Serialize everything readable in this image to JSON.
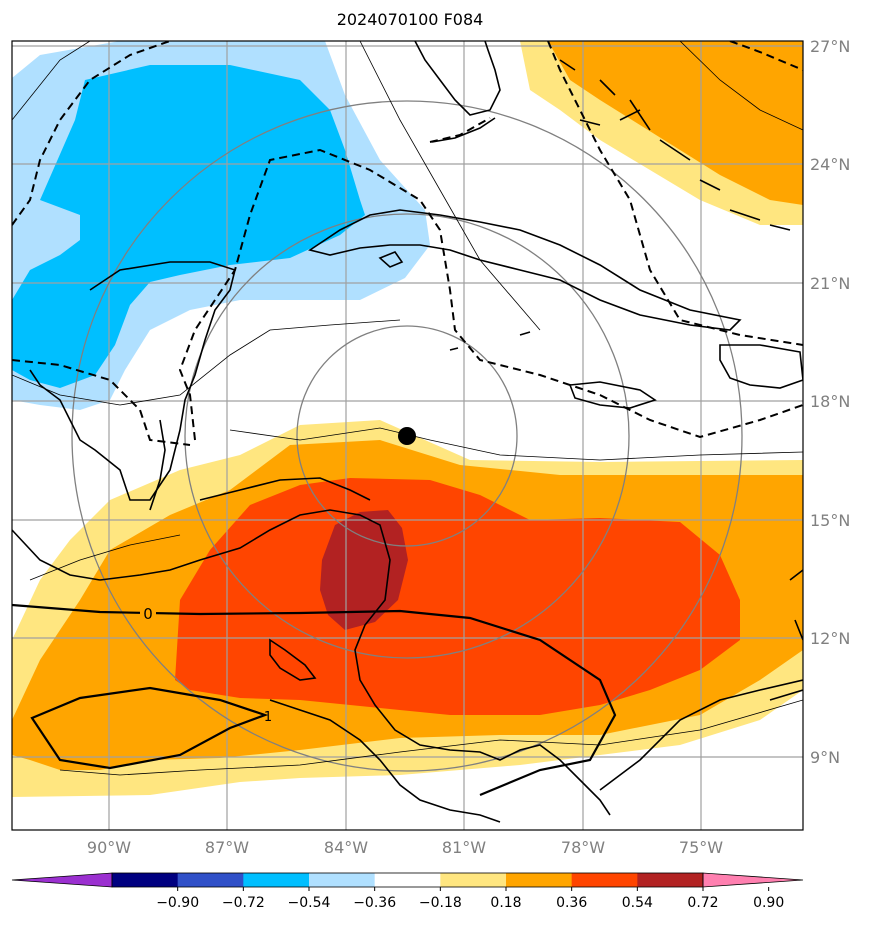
{
  "title": "2024070100 F084",
  "lat_labels": [
    "27°N",
    "24°N",
    "21°N",
    "18°N",
    "15°N",
    "12°N",
    "9°N"
  ],
  "lon_labels": [
    "90°W",
    "87°W",
    "84°W",
    "81°W",
    "78°W",
    "75°W"
  ],
  "contour_labels": [
    "0",
    "1"
  ],
  "marker": {
    "lon": -82.0,
    "lat": 17.1,
    "label": "storm-center-marker"
  },
  "colorbar": {
    "tick_labels": [
      "−0.90",
      "−0.72",
      "−0.54",
      "−0.36",
      "−0.18",
      "0.18",
      "0.36",
      "0.54",
      "0.72",
      "0.90"
    ],
    "colors": [
      "#9b30d0",
      "#000080",
      "#3050c8",
      "#00bfff",
      "#b0e0ff",
      "#ffffff",
      "#ffe680",
      "#ffa500",
      "#ff4500",
      "#b22222",
      "#ff80b0"
    ]
  },
  "colors": {
    "light_blue": "#b0e0ff",
    "blue": "#00bfff",
    "yellow": "#ffe680",
    "orange": "#ffa500",
    "red_orange": "#ff4500",
    "dark_red": "#b22222"
  }
}
